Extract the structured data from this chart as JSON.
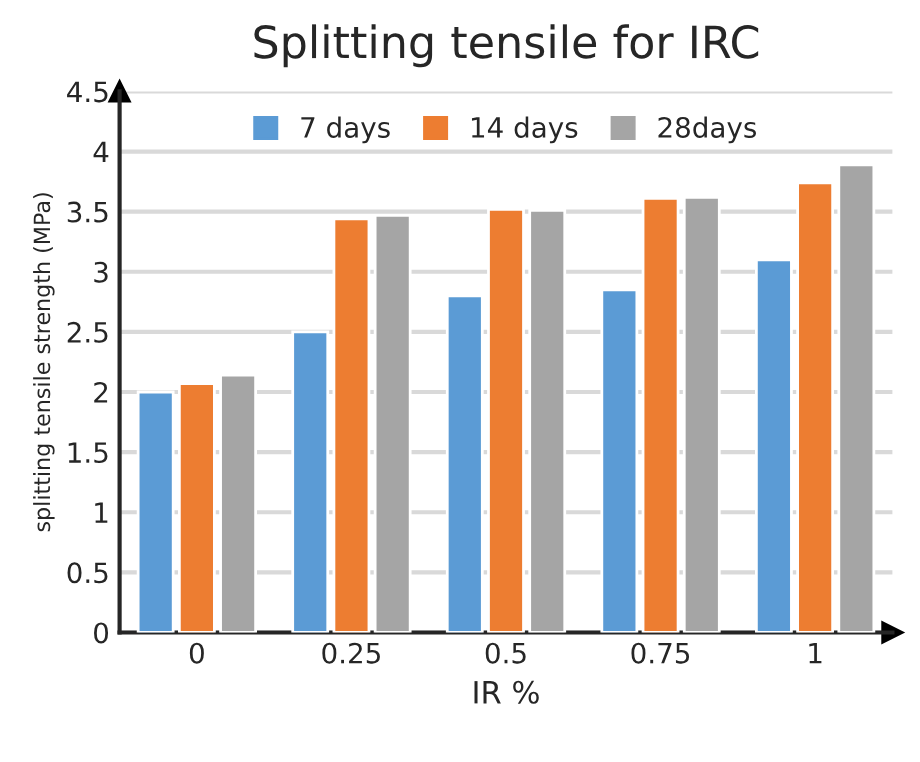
{
  "chart_data": {
    "type": "bar",
    "title": "Splitting tensile for IRC",
    "xlabel": "IR %",
    "ylabel": "splitting tensile strength (MPa)",
    "categories": [
      "0",
      "0.25",
      "0.5",
      "0.75",
      "1"
    ],
    "series": [
      {
        "name": "7 days",
        "color": "#5b9bd5",
        "values": [
          2.0,
          2.5,
          2.8,
          2.85,
          3.1
        ]
      },
      {
        "name": "14 days",
        "color": "#ed7d31",
        "values": [
          2.07,
          3.44,
          3.52,
          3.61,
          3.74
        ]
      },
      {
        "name": "28days",
        "color": "#a5a5a5",
        "values": [
          2.14,
          3.47,
          3.51,
          3.62,
          3.89
        ]
      }
    ],
    "ylim": [
      0,
      4.5
    ],
    "yticks": [
      0,
      0.5,
      1,
      1.5,
      2,
      2.5,
      3,
      3.5,
      4,
      4.5
    ],
    "grid": "y",
    "legend": "top"
  }
}
